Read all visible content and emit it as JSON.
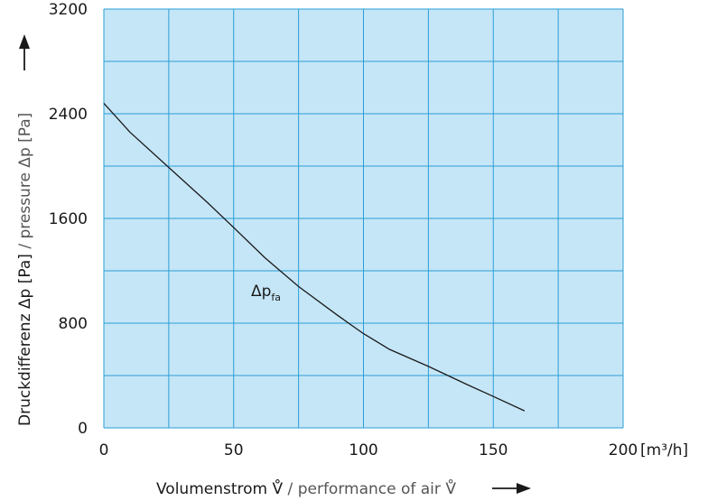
{
  "chart_data": {
    "type": "line",
    "title": "",
    "xlabel_de": "Volumenstrom",
    "xlabel_sep": " / ",
    "xlabel_en": "performance of air",
    "xlabel_symbol": "V̊",
    "x_unit": "[m³/h]",
    "ylabel_de": "Druckdifferenz",
    "ylabel_symbol": "Δp",
    "ylabel_unit": "[Pa]",
    "ylabel_sep": " / ",
    "ylabel_en": "pressure",
    "xlim": [
      0,
      200
    ],
    "ylim": [
      0,
      3200
    ],
    "x_ticks": [
      0,
      50,
      100,
      150,
      200
    ],
    "y_ticks": [
      0,
      800,
      1600,
      2400,
      3200
    ],
    "x_grid_step": 25,
    "y_grid_step": 400,
    "grid": true,
    "plot_background": "#c5e6f7",
    "grid_color": "#2a9fd6",
    "line_color": "#1a1a1a",
    "series": [
      {
        "name": "Δp_fa",
        "label_main": "Δp",
        "label_sub": "fa",
        "x": [
          0,
          10,
          25,
          40,
          50,
          62,
          75,
          90,
          100,
          110,
          125,
          140,
          150,
          162
        ],
        "y": [
          2480,
          2260,
          1990,
          1720,
          1530,
          1300,
          1080,
          860,
          720,
          600,
          470,
          330,
          240,
          130
        ]
      }
    ]
  }
}
